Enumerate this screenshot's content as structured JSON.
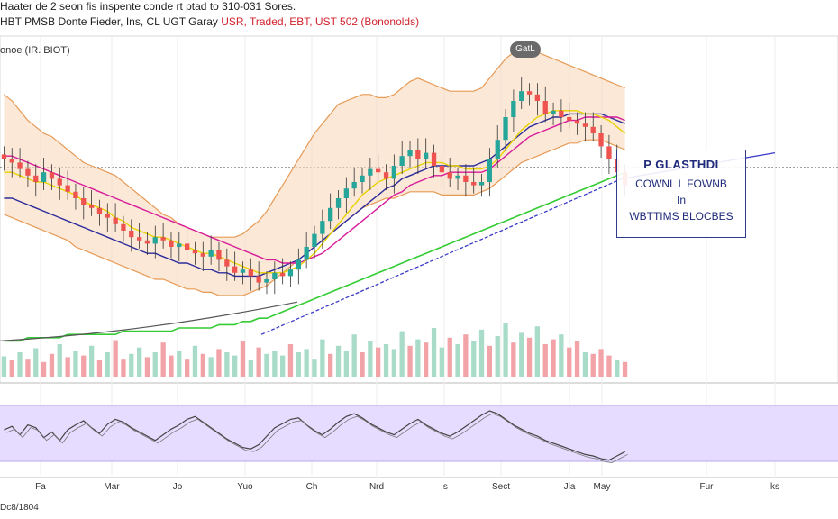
{
  "header": {
    "line1": "Haater de 2 seon fis inspente conde rt ptad to 310-031 Sores.",
    "line2_black": "HBT PMSB Donte Fieder, Ins, CL UGT Garay",
    "line2_red": "USR, Traded, EBT, UST 502 (Bononolds)",
    "pane_label": "onoe (IR. BIOT)",
    "bottom_left": "Dc8/1804"
  },
  "annotation": {
    "title": "P GLASTHDI",
    "line2": "COWNL L FOWNB",
    "line3": "In",
    "line4": "WBTTIMS BLOCBES"
  },
  "peak_label": "GatL",
  "colors": {
    "up": "#26a69a",
    "down": "#ef5350",
    "ma_yellow": "#e8d200",
    "ma_magenta": "#d81b9a",
    "ma_navy": "#2c2c9c",
    "ma_green": "#33cc33",
    "ma_gray": "#555555",
    "band_fill": "#f8d9bd",
    "band_edge": "#e69a55",
    "trend_blue": "#3a3ac8",
    "osc_fill": "#e6dcff",
    "osc_line": "#444444"
  },
  "chart_data": [
    {
      "type": "line",
      "ylim": [
        0,
        100
      ],
      "x_tick_labels": [
        "Fa",
        "Mar",
        "Jo",
        "Yuo",
        "Ch",
        "Nrd",
        "Is",
        "Sect",
        "Jla",
        "May",
        "Fur",
        "ks"
      ],
      "price_close": [
        62,
        61,
        59,
        57,
        55,
        58,
        56,
        54,
        52,
        50,
        48,
        47,
        45,
        44,
        42,
        40,
        38,
        37,
        36,
        38,
        37,
        35,
        36,
        34,
        33,
        32,
        34,
        31,
        29,
        27,
        28,
        26,
        24,
        25,
        27,
        26,
        28,
        31,
        35,
        39,
        43,
        47,
        50,
        53,
        55,
        57,
        59,
        58,
        56,
        60,
        63,
        65,
        62,
        64,
        60,
        58,
        56,
        57,
        55,
        54,
        55,
        62,
        68,
        75,
        80,
        83,
        82,
        80,
        76,
        77,
        75,
        74,
        73,
        72,
        70,
        66,
        62,
        58,
        54
      ],
      "bb_upper": [
        82,
        80,
        77,
        74,
        72,
        70,
        69,
        67,
        65,
        63,
        61,
        60,
        59,
        58,
        57,
        55,
        53,
        51,
        49,
        47,
        45,
        44,
        42,
        41,
        40,
        39,
        38,
        38,
        38,
        38,
        39,
        41,
        43,
        46,
        50,
        54,
        58,
        62,
        66,
        70,
        73,
        76,
        79,
        80,
        81,
        82,
        82,
        81,
        81,
        82,
        84,
        86,
        87,
        86,
        85,
        84,
        83,
        83,
        83,
        83,
        84,
        87,
        90,
        93,
        95,
        96,
        96,
        95,
        94,
        93,
        92,
        91,
        90,
        89,
        88,
        87,
        86,
        85,
        84
      ],
      "bb_lower": [
        45,
        44,
        43,
        42,
        41,
        40,
        39,
        38,
        37,
        35,
        34,
        33,
        32,
        31,
        30,
        29,
        28,
        27,
        26,
        25,
        25,
        24,
        23,
        22,
        22,
        21,
        21,
        20,
        20,
        20,
        20,
        21,
        22,
        23,
        25,
        27,
        29,
        31,
        33,
        35,
        37,
        39,
        41,
        43,
        45,
        47,
        48,
        49,
        50,
        50,
        51,
        52,
        52,
        52,
        52,
        51,
        51,
        51,
        51,
        51,
        52,
        53,
        55,
        57,
        59,
        61,
        62,
        63,
        64,
        65,
        66,
        67,
        67,
        68,
        68,
        68,
        67,
        66,
        65
      ],
      "ma_yellow": [
        58,
        58,
        57,
        56,
        55,
        55,
        54,
        53,
        52,
        51,
        49,
        48,
        47,
        46,
        44,
        43,
        41,
        40,
        39,
        38,
        38,
        37,
        36,
        35,
        34,
        33,
        33,
        32,
        31,
        30,
        29,
        28,
        27,
        27,
        27,
        27,
        28,
        29,
        31,
        33,
        36,
        39,
        42,
        45,
        48,
        51,
        53,
        55,
        56,
        57,
        58,
        59,
        60,
        61,
        61,
        61,
        60,
        60,
        59,
        59,
        59,
        60,
        62,
        65,
        68,
        71,
        73,
        75,
        76,
        77,
        77,
        77,
        77,
        76,
        76,
        75,
        74,
        72,
        70
      ],
      "ma_magenta": [
        63,
        63,
        62,
        61,
        60,
        59,
        58,
        57,
        56,
        55,
        54,
        53,
        52,
        51,
        50,
        49,
        48,
        47,
        46,
        45,
        44,
        43,
        42,
        41,
        40,
        39,
        38,
        37,
        36,
        35,
        34,
        33,
        32,
        31,
        31,
        30,
        30,
        30,
        31,
        32,
        33,
        35,
        37,
        39,
        41,
        43,
        45,
        47,
        49,
        51,
        52,
        54,
        55,
        56,
        57,
        57,
        58,
        58,
        58,
        58,
        58,
        59,
        61,
        63,
        65,
        67,
        69,
        70,
        71,
        72,
        73,
        74,
        74,
        75,
        75,
        75,
        75,
        75,
        74
      ],
      "ma_navy": [
        50,
        50,
        49,
        48,
        47,
        46,
        45,
        44,
        43,
        42,
        41,
        40,
        39,
        38,
        37,
        36,
        35,
        34,
        33,
        33,
        32,
        31,
        30,
        30,
        29,
        28,
        28,
        27,
        27,
        26,
        26,
        26,
        26,
        27,
        28,
        29,
        30,
        31,
        33,
        35,
        37,
        39,
        41,
        43,
        45,
        47,
        49,
        51,
        53,
        54,
        56,
        57,
        58,
        59,
        60,
        60,
        60,
        60,
        60,
        60,
        61,
        62,
        64,
        66,
        68,
        70,
        72,
        73,
        74,
        75,
        75,
        76,
        76,
        76,
        76,
        76,
        75,
        74,
        73
      ],
      "ma_green": [
        6,
        6,
        6,
        7,
        7,
        7,
        7,
        7,
        8,
        8,
        8,
        8,
        8,
        8,
        8,
        9,
        9,
        9,
        9,
        9,
        9,
        9,
        10,
        10,
        10,
        10,
        10,
        11,
        11,
        11,
        12,
        12,
        13,
        13,
        14,
        15,
        16,
        17,
        18,
        19,
        20,
        21,
        22,
        23,
        24,
        25,
        26,
        27,
        28,
        29,
        30,
        31,
        32,
        33,
        34,
        35,
        36,
        37,
        38,
        39,
        40,
        41,
        42,
        43,
        44,
        45,
        46,
        47,
        48,
        49,
        50,
        51,
        52,
        53,
        54,
        55,
        56,
        57,
        58
      ],
      "trend_line_end": 78,
      "volume_pct": [
        25,
        20,
        30,
        22,
        35,
        18,
        28,
        40,
        24,
        32,
        26,
        38,
        20,
        30,
        45,
        22,
        28,
        36,
        24,
        30,
        42,
        26,
        32,
        22,
        38,
        28,
        24,
        34,
        30,
        26,
        44,
        20,
        36,
        28,
        32,
        26,
        40,
        30,
        34,
        22,
        46,
        28,
        38,
        32,
        52,
        30,
        44,
        36,
        40,
        34,
        56,
        38,
        46,
        42,
        60,
        36,
        48,
        40,
        52,
        44,
        58,
        38,
        50,
        66,
        42,
        54,
        48,
        62,
        40,
        46,
        52,
        36,
        44,
        30,
        28,
        34,
        26,
        20,
        18
      ],
      "volume_up": [
        1,
        0,
        1,
        0,
        1,
        0,
        0,
        1,
        0,
        1,
        0,
        1,
        0,
        1,
        0,
        0,
        1,
        1,
        0,
        1,
        0,
        0,
        1,
        0,
        1,
        0,
        1,
        0,
        1,
        1,
        0,
        1,
        0,
        1,
        1,
        1,
        0,
        1,
        1,
        1,
        1,
        0,
        1,
        1,
        1,
        0,
        1,
        0,
        1,
        1,
        1,
        0,
        1,
        0,
        1,
        1,
        0,
        1,
        0,
        1,
        1,
        0,
        1,
        1,
        0,
        1,
        0,
        1,
        0,
        0,
        1,
        0,
        0,
        1,
        0,
        0,
        0,
        1,
        0
      ],
      "oscillator": [
        55,
        60,
        48,
        62,
        58,
        44,
        52,
        40,
        55,
        62,
        68,
        58,
        50,
        63,
        70,
        66,
        58,
        52,
        46,
        40,
        48,
        56,
        62,
        70,
        74,
        66,
        58,
        50,
        42,
        36,
        30,
        28,
        34,
        46,
        58,
        64,
        70,
        72,
        62,
        54,
        48,
        56,
        66,
        74,
        78,
        72,
        64,
        58,
        52,
        48,
        56,
        64,
        70,
        62,
        56,
        50,
        46,
        52,
        60,
        68,
        76,
        82,
        78,
        70,
        62,
        56,
        50,
        46,
        40,
        36,
        32,
        28,
        24,
        20,
        18,
        14,
        12,
        18,
        24
      ]
    }
  ]
}
